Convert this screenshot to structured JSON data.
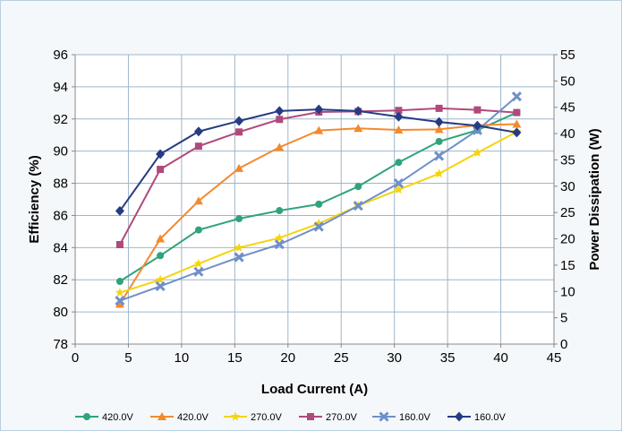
{
  "chart_data": {
    "type": "line",
    "title": "",
    "xlabel": "Load Current (A)",
    "ylabel": "Efficiency (%)",
    "y2label": "Power Dissipation (W)",
    "xlim": [
      0,
      45
    ],
    "ylim": [
      78,
      96
    ],
    "y2lim": [
      0,
      55
    ],
    "xticks": [
      0,
      5,
      10,
      15,
      20,
      25,
      30,
      35,
      40,
      45
    ],
    "yticks": [
      78,
      80,
      82,
      84,
      86,
      88,
      90,
      92,
      94,
      96
    ],
    "y2ticks": [
      0,
      5,
      10,
      15,
      20,
      25,
      30,
      35,
      40,
      45,
      50,
      55
    ],
    "grid": true,
    "legend_position": "bottom",
    "series": [
      {
        "name": "420.0V",
        "axis": "left",
        "marker": "circle",
        "color": "#2fa37c",
        "x": [
          4.2,
          8.0,
          11.6,
          15.4,
          19.2,
          22.9,
          26.6,
          30.4,
          34.2,
          37.8,
          41.5
        ],
        "y": [
          81.9,
          83.5,
          85.1,
          85.8,
          86.3,
          86.7,
          87.8,
          89.3,
          90.6,
          91.3,
          92.4
        ]
      },
      {
        "name": "420.0V",
        "axis": "right",
        "marker": "triangle",
        "color": "#f28a2e",
        "x": [
          4.2,
          8.0,
          11.6,
          15.4,
          19.2,
          22.9,
          26.6,
          30.4,
          34.2,
          37.8,
          41.5
        ],
        "y": [
          7.6,
          20.0,
          27.2,
          33.4,
          37.4,
          40.6,
          41.0,
          40.7,
          40.8,
          41.6,
          41.8
        ]
      },
      {
        "name": "270.0V",
        "axis": "left",
        "marker": "star",
        "color": "#f5d40c",
        "x": [
          4.2,
          8.0,
          11.6,
          15.4,
          19.2,
          22.9,
          26.6,
          30.4,
          34.2,
          37.8,
          41.5
        ],
        "y": [
          81.2,
          82.0,
          83.0,
          84.0,
          84.6,
          85.5,
          86.6,
          87.6,
          88.6,
          89.9,
          91.2
        ]
      },
      {
        "name": "270.0V",
        "axis": "right",
        "marker": "square",
        "color": "#b04a7a",
        "x": [
          4.2,
          8.0,
          11.6,
          15.4,
          19.2,
          22.9,
          26.6,
          30.4,
          34.2,
          37.8,
          41.5
        ],
        "y": [
          18.9,
          33.2,
          37.6,
          40.3,
          42.7,
          44.1,
          44.2,
          44.4,
          44.8,
          44.5,
          44.0
        ]
      },
      {
        "name": "160.0V",
        "axis": "left",
        "marker": "x",
        "color": "#6f8fc9",
        "x": [
          4.2,
          8.0,
          11.6,
          15.4,
          19.2,
          22.9,
          26.6,
          30.4,
          34.2,
          37.8,
          41.5
        ],
        "y": [
          80.7,
          81.6,
          82.5,
          83.4,
          84.2,
          85.3,
          86.6,
          88.0,
          89.7,
          91.3,
          93.4
        ]
      },
      {
        "name": "160.0V",
        "axis": "right",
        "marker": "diamond",
        "color": "#263b84",
        "x": [
          4.2,
          8.0,
          11.6,
          15.4,
          19.2,
          22.9,
          26.6,
          30.4,
          34.2,
          37.8,
          41.5
        ],
        "y": [
          25.3,
          36.1,
          40.4,
          42.4,
          44.3,
          44.6,
          44.3,
          43.2,
          42.2,
          41.5,
          40.2
        ]
      }
    ]
  }
}
